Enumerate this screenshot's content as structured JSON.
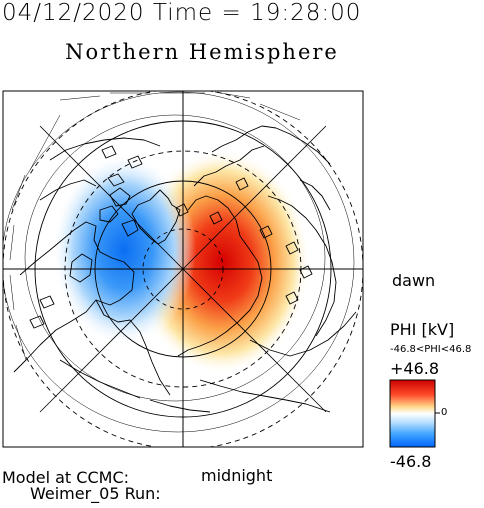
{
  "header": {
    "date": "04/12/2020",
    "time_label": "Time",
    "equals": "=",
    "time": "19:28:00"
  },
  "map_title": "Northern Hemisphere",
  "labels": {
    "dawn": "dawn",
    "midnight": "midnight"
  },
  "model_info": {
    "line1": "Model at CCMC:",
    "line2": "Weimer_05  Run:"
  },
  "legend": {
    "quantity": "PHI [kV]",
    "range_text": "-46.8<PHI<46.8",
    "max_label": "+46.8",
    "mid_label": "0",
    "min_label": "-46.8",
    "colors": {
      "max": "#cc0000",
      "mid": "#ffffff",
      "min": "#0066ff"
    }
  },
  "potential_cells": {
    "positive": {
      "label": "+46.8",
      "color": "#dd1111"
    },
    "negative": {
      "label": "-46.8",
      "color": "#1177ee"
    }
  }
}
